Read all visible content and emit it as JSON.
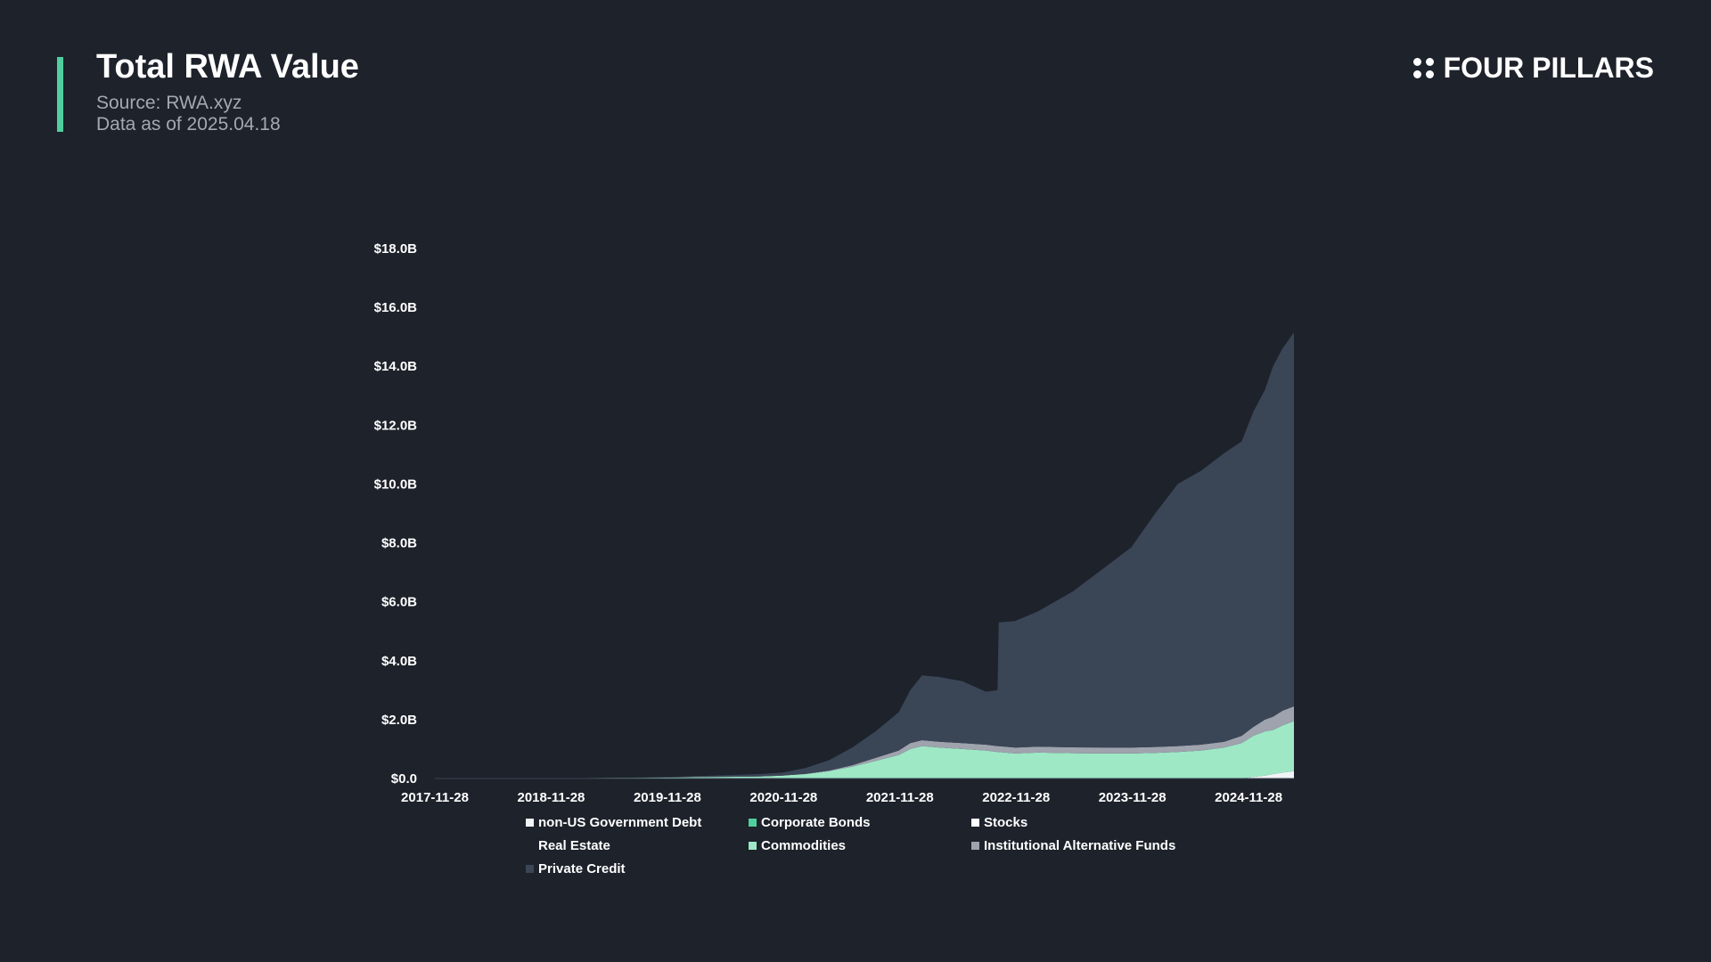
{
  "header": {
    "title": "Total RWA Value",
    "source": "Source: RWA.xyz",
    "data_as_of": "Data as of 2025.04.18"
  },
  "brand": {
    "name": "FOUR PILLARS",
    "icon": "four-dots-logo-icon"
  },
  "colors": {
    "background": "#1d222b",
    "accent": "#4fcf9e"
  },
  "chart_data": {
    "type": "area",
    "stacked": true,
    "title": "Total RWA Value",
    "xlabel": "",
    "ylabel": "",
    "ylim": [
      0,
      18
    ],
    "y_ticks": [
      "$0.0",
      "$2.0B",
      "$4.0B",
      "$6.0B",
      "$8.0B",
      "$10.0B",
      "$12.0B",
      "$14.0B",
      "$16.0B",
      "$18.0B"
    ],
    "x_ticks": [
      "2017-11-28",
      "2018-11-28",
      "2019-11-28",
      "2020-11-28",
      "2021-11-28",
      "2022-11-28",
      "2023-11-28",
      "2024-11-28"
    ],
    "xlim": [
      2017.91,
      2025.3
    ],
    "legend_position": "bottom",
    "grid": false,
    "x": [
      2017.91,
      2018.9,
      2019.5,
      2019.9,
      2020.3,
      2020.7,
      2020.9,
      2021.1,
      2021.3,
      2021.5,
      2021.7,
      2021.9,
      2022.0,
      2022.1,
      2022.25,
      2022.45,
      2022.65,
      2022.75,
      2022.76,
      2022.9,
      2023.1,
      2023.4,
      2023.7,
      2023.9,
      2024.1,
      2024.3,
      2024.5,
      2024.7,
      2024.85,
      2024.95,
      2025.05,
      2025.12,
      2025.2,
      2025.3
    ],
    "series": [
      {
        "name": "non-US Government Debt",
        "color": "#f2f4f5",
        "values": [
          0,
          0,
          0,
          0,
          0,
          0,
          0,
          0,
          0,
          0,
          0,
          0,
          0,
          0,
          0,
          0,
          0,
          0,
          0,
          0,
          0,
          0,
          0,
          0,
          0,
          0,
          0,
          0,
          0,
          0.05,
          0.1,
          0.15,
          0.2,
          0.25
        ]
      },
      {
        "name": "Corporate Bonds",
        "color": "#4fcf9e",
        "values": [
          0,
          0,
          0,
          0,
          0,
          0,
          0,
          0,
          0,
          0,
          0,
          0,
          0,
          0,
          0,
          0,
          0,
          0,
          0,
          0,
          0,
          0,
          0,
          0,
          0,
          0,
          0,
          0,
          0,
          0,
          0,
          0,
          0,
          0
        ]
      },
      {
        "name": "Stocks",
        "color": "#ffffff",
        "values": [
          0,
          0,
          0,
          0,
          0,
          0,
          0,
          0,
          0,
          0,
          0,
          0,
          0,
          0,
          0,
          0,
          0,
          0,
          0,
          0,
          0,
          0,
          0,
          0,
          0,
          0,
          0,
          0,
          0,
          0,
          0,
          0,
          0,
          0
        ]
      },
      {
        "name": "Real Estate",
        "color": "#1d222b",
        "values": [
          0,
          0,
          0,
          0,
          0,
          0,
          0,
          0,
          0,
          0,
          0,
          0,
          0,
          0,
          0,
          0,
          0,
          0,
          0,
          0,
          0,
          0,
          0,
          0,
          0,
          0,
          0,
          0,
          0,
          0,
          0,
          0,
          0,
          0
        ]
      },
      {
        "name": "Commodities",
        "color": "#9ee8c6",
        "values": [
          0,
          0.01,
          0.02,
          0.03,
          0.05,
          0.07,
          0.1,
          0.15,
          0.25,
          0.4,
          0.6,
          0.8,
          1.0,
          1.1,
          1.05,
          1.0,
          0.95,
          0.9,
          0.9,
          0.85,
          0.88,
          0.86,
          0.85,
          0.85,
          0.87,
          0.9,
          0.95,
          1.05,
          1.2,
          1.4,
          1.5,
          1.5,
          1.6,
          1.7
        ]
      },
      {
        "name": "Institutional Alternative Funds",
        "color": "#9ea3ad",
        "values": [
          0,
          0,
          0,
          0,
          0,
          0,
          0,
          0.01,
          0.02,
          0.05,
          0.1,
          0.15,
          0.2,
          0.2,
          0.2,
          0.2,
          0.2,
          0.2,
          0.2,
          0.2,
          0.2,
          0.2,
          0.2,
          0.2,
          0.2,
          0.2,
          0.2,
          0.2,
          0.25,
          0.3,
          0.4,
          0.45,
          0.5,
          0.5
        ]
      },
      {
        "name": "Private Credit",
        "color": "#3a4556",
        "values": [
          0,
          0,
          0,
          0.02,
          0.05,
          0.08,
          0.1,
          0.2,
          0.35,
          0.6,
          0.9,
          1.3,
          1.8,
          2.2,
          2.2,
          2.1,
          1.8,
          1.9,
          4.2,
          4.3,
          4.6,
          5.3,
          6.2,
          6.8,
          7.9,
          8.9,
          9.3,
          9.8,
          10.0,
          10.7,
          11.2,
          11.9,
          12.3,
          12.7
        ]
      }
    ]
  }
}
